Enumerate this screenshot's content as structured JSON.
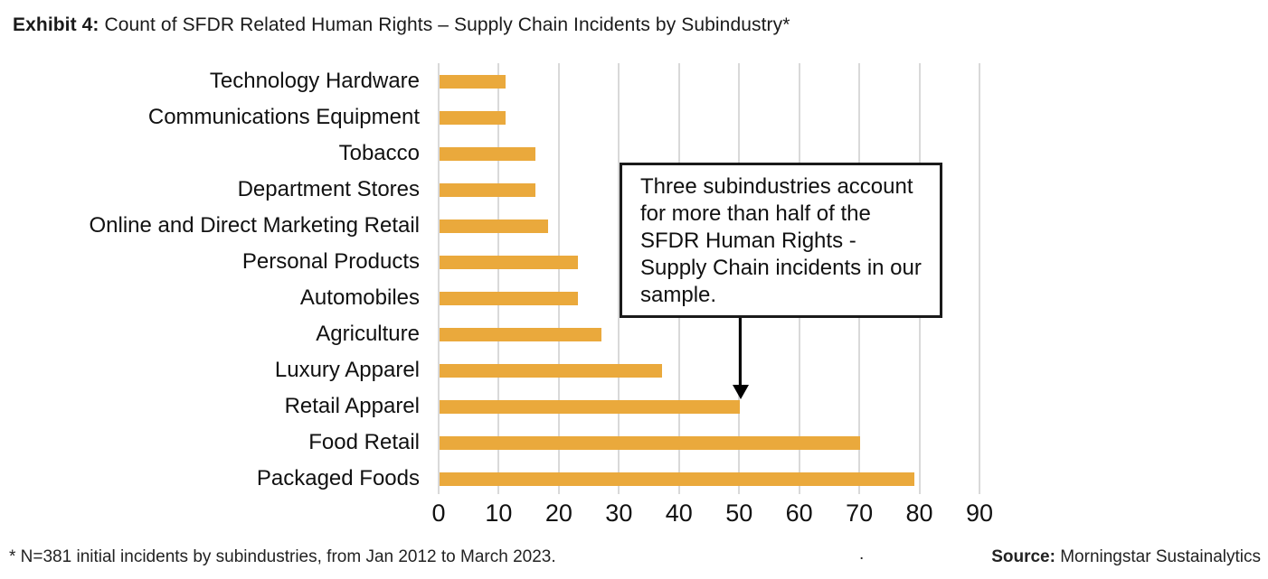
{
  "title": {
    "prefix": "Exhibit 4:",
    "text": " Count of SFDR Related Human Rights – Supply Chain Incidents by Subindustry*"
  },
  "chart_data": {
    "type": "bar",
    "orientation": "horizontal",
    "title": "Count of SFDR Related Human Rights – Supply Chain Incidents by Subindustry",
    "categories": [
      "Technology Hardware",
      "Communications Equipment",
      "Tobacco",
      "Department Stores",
      "Online and Direct Marketing Retail",
      "Personal Products",
      "Automobiles",
      "Agriculture",
      "Luxury Apparel",
      "Retail Apparel",
      "Food Retail",
      "Packaged Foods"
    ],
    "values": [
      11,
      11,
      16,
      16,
      18,
      23,
      23,
      27,
      37,
      50,
      70,
      79
    ],
    "xlabel": "",
    "ylabel": "",
    "xlim": [
      0,
      90
    ],
    "xticks": [
      0,
      10,
      20,
      30,
      40,
      50,
      60,
      70,
      80,
      90
    ],
    "grid": true,
    "bar_color": "#EAA93C",
    "gridline_color": "#D9D9D9",
    "annotation": {
      "text": "Three subindustries account for more than half of the SFDR Human Rights - Supply Chain incidents in our sample.",
      "arrow_points_to_category": "Retail Apparel",
      "arrow_points_to_value": 50
    }
  },
  "callout": {
    "text": "Three subindustries account for more than half of the SFDR Human Rights - Supply Chain incidents in our sample."
  },
  "footer": {
    "note": "* N=381 initial incidents by subindustries, from Jan 2012 to March 2023.",
    "stray_period": ".",
    "source_label": "Source:",
    "source_text": " Morningstar Sustainalytics"
  }
}
